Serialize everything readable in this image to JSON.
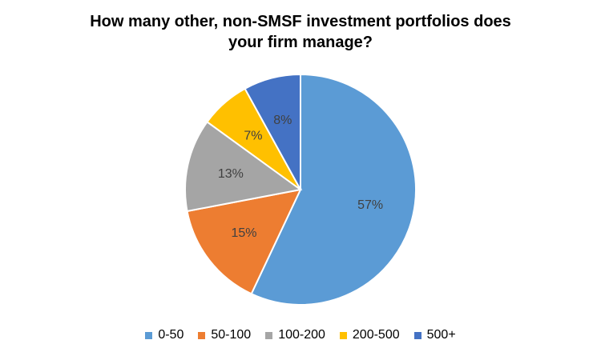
{
  "chart_data": {
    "type": "pie",
    "title_lines": [
      "How many other, non-SMSF investment portfolios does",
      "your firm manage?"
    ],
    "categories": [
      "0-50",
      "50-100",
      "100-200",
      "200-500",
      "500+"
    ],
    "values": [
      57,
      15,
      13,
      7,
      8
    ],
    "labels": [
      "57%",
      "15%",
      "13%",
      "7%",
      "8%"
    ],
    "colors": [
      "#5B9BD5",
      "#ED7D31",
      "#A5A5A5",
      "#FFC000",
      "#4472C4"
    ],
    "legend_position": "bottom"
  }
}
